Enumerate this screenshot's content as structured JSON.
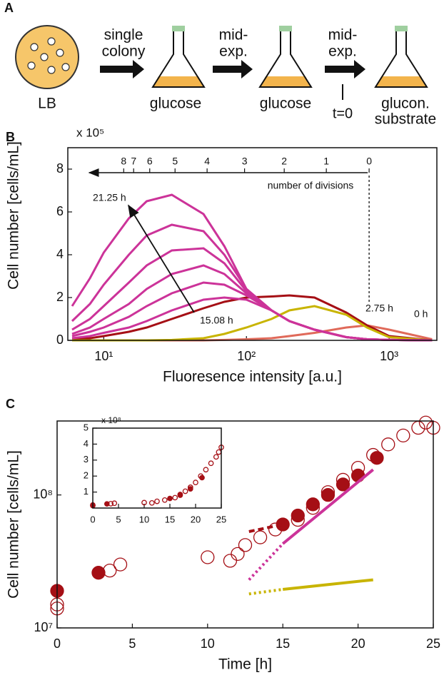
{
  "diagram": {
    "label": "A",
    "plate": "LB",
    "steps": [
      [
        "single",
        "colony"
      ],
      [
        "mid-",
        "exp."
      ],
      [
        "mid-",
        "exp."
      ]
    ],
    "media": [
      [
        "glucose"
      ],
      [
        "glucose"
      ],
      [
        "glucon.",
        "substrate"
      ]
    ],
    "time_mark": "t=0"
  },
  "chart_data": [
    {
      "type": "line",
      "panel": "B",
      "y_multiplier": "x 10⁵",
      "ylabel": "Cell number [cells/mL]",
      "xlabel": "Fluoresence intensity [a.u.]",
      "xlog": true,
      "xlim": [
        5.6,
        2160
      ],
      "ylim": [
        0,
        9
      ],
      "xticks": [
        {
          "value": 10,
          "label": "10¹"
        },
        {
          "value": 100,
          "label": "10²"
        },
        {
          "value": 1000,
          "label": "10³"
        }
      ],
      "yticks": [
        0,
        2,
        4,
        6,
        8
      ],
      "x2label": "number of divisions",
      "x2ticks": [
        {
          "value": 724,
          "label": "0"
        },
        {
          "value": 363,
          "label": "1"
        },
        {
          "value": 184,
          "label": "2"
        },
        {
          "value": 97,
          "label": "3"
        },
        {
          "value": 53,
          "label": "4"
        },
        {
          "value": 31.6,
          "label": "5"
        },
        {
          "value": 21,
          "label": "6"
        },
        {
          "value": 16.2,
          "label": "7"
        },
        {
          "value": 13.8,
          "label": "8"
        }
      ],
      "annotations": [
        "21.25 h",
        "15.08 h",
        "2.75 h",
        "0 h"
      ],
      "x": [
        6,
        8,
        10,
        15,
        20,
        30,
        50,
        70,
        100,
        150,
        200,
        300,
        500,
        700,
        1000,
        2000
      ],
      "series": [
        {
          "color": "#e06a5a",
          "values": [
            0,
            0,
            0,
            0,
            0,
            0,
            0,
            0.02,
            0.05,
            0.1,
            0.2,
            0.35,
            0.6,
            0.7,
            0.5,
            0.05
          ]
        },
        {
          "color": "#a50f15",
          "values": [
            0.05,
            0.1,
            0.2,
            0.4,
            0.6,
            1.0,
            1.5,
            1.8,
            2.0,
            2.05,
            2.1,
            2.0,
            1.3,
            0.7,
            0.2,
            0
          ]
        },
        {
          "color": "#c8b400",
          "values": [
            0,
            0,
            0,
            0,
            0,
            0.02,
            0.1,
            0.3,
            0.6,
            1.0,
            1.4,
            1.6,
            1.2,
            0.6,
            0.15,
            0
          ]
        },
        {
          "color": "#cc3399",
          "values": [
            0.1,
            0.2,
            0.35,
            0.6,
            0.9,
            1.4,
            1.9,
            2.0,
            1.9,
            1.4,
            0.9,
            0.5,
            0.15,
            0.05,
            0.02,
            0
          ]
        },
        {
          "color": "#cc3399",
          "values": [
            0.2,
            0.4,
            0.6,
            1.1,
            1.6,
            2.2,
            2.7,
            2.6,
            2.1,
            1.4,
            0.9,
            0.5,
            0.15,
            0.05,
            0.02,
            0
          ]
        },
        {
          "color": "#cc3399",
          "values": [
            0.3,
            0.6,
            1.0,
            1.7,
            2.4,
            3.1,
            3.5,
            3.1,
            2.2,
            1.4,
            0.9,
            0.5,
            0.15,
            0.05,
            0.02,
            0
          ]
        },
        {
          "color": "#cc3399",
          "values": [
            0.5,
            1.0,
            1.6,
            2.7,
            3.5,
            4.2,
            4.3,
            3.6,
            2.3,
            1.4,
            0.9,
            0.5,
            0.15,
            0.05,
            0.02,
            0
          ]
        },
        {
          "color": "#cc3399",
          "values": [
            0.9,
            1.7,
            2.6,
            4.0,
            4.9,
            5.4,
            5.1,
            4.0,
            2.4,
            1.4,
            0.9,
            0.5,
            0.15,
            0.05,
            0.02,
            0
          ]
        },
        {
          "color": "#cc3399",
          "values": [
            1.6,
            2.9,
            4.1,
            5.7,
            6.5,
            6.8,
            5.9,
            4.4,
            2.4,
            1.4,
            0.9,
            0.5,
            0.15,
            0.05,
            0.02,
            0
          ]
        }
      ]
    },
    {
      "type": "scatter",
      "panel": "C",
      "ylabel": "Cell number [cells/mL]",
      "xlabel": "Time [h]",
      "ylog": true,
      "xlim": [
        0,
        25
      ],
      "ylim": [
        10000000,
        360000000
      ],
      "xticks": [
        0,
        5,
        10,
        15,
        20,
        25
      ],
      "yticks": [
        {
          "value": 10000000,
          "label": "10⁷"
        },
        {
          "value": 100000000,
          "label": "10⁸"
        }
      ],
      "series": [
        {
          "color": "#a50f15",
          "marker": "open",
          "x": [
            0,
            0,
            3.5,
            4.2,
            10,
            11.5,
            12,
            12.5,
            13.5,
            14.5,
            16,
            17,
            18,
            19,
            20,
            21,
            22,
            23,
            24,
            24.5,
            25
          ],
          "values": [
            14000000,
            15000000,
            27000000,
            30000000,
            34000000,
            32000000,
            36000000,
            42000000,
            48000000,
            55000000,
            65000000,
            80000000,
            105000000,
            130000000,
            160000000,
            200000000,
            240000000,
            280000000,
            320000000,
            350000000,
            320000000
          ]
        },
        {
          "color": "#a50f15",
          "marker": "filled",
          "x": [
            0,
            2.75,
            15,
            16,
            17,
            18,
            19,
            20,
            21.25
          ],
          "values": [
            19000000,
            26000000,
            60000000,
            70000000,
            85000000,
            100000000,
            120000000,
            140000000,
            190000000
          ]
        },
        {
          "color": "#a50f15",
          "line": "dashed",
          "x": [
            12.75,
            15
          ],
          "values": [
            53000000,
            60000000
          ]
        },
        {
          "color": "#cc3399",
          "line": "dotted",
          "x": [
            12.75,
            15
          ],
          "values": [
            23000000,
            43000000
          ]
        },
        {
          "color": "#cc3399",
          "line": "solid",
          "x": [
            15,
            21
          ],
          "values": [
            43000000,
            155000000
          ]
        },
        {
          "color": "#c8b400",
          "line": "dotted",
          "x": [
            12.75,
            15
          ],
          "values": [
            18000000,
            19500000
          ]
        },
        {
          "color": "#c8b400",
          "line": "solid",
          "x": [
            15,
            21
          ],
          "values": [
            19500000,
            23000000
          ]
        }
      ]
    },
    {
      "type": "scatter",
      "panel": "inset",
      "y_multiplier": "x 10⁸",
      "xlim": [
        0,
        25
      ],
      "ylim": [
        0,
        5
      ],
      "xticks": [
        0,
        5,
        10,
        15,
        20,
        25
      ],
      "yticks": [
        1,
        2,
        3,
        4,
        5
      ],
      "series": [
        {
          "color": "#a50f15",
          "marker": "open",
          "x": [
            0,
            3.5,
            4.2,
            10,
            11.5,
            12.5,
            14,
            16,
            17,
            18,
            19,
            20,
            21,
            22,
            23,
            24,
            24.5,
            25
          ],
          "values": [
            0.15,
            0.27,
            0.3,
            0.34,
            0.32,
            0.42,
            0.5,
            0.65,
            0.8,
            1.05,
            1.3,
            1.6,
            2.0,
            2.4,
            2.8,
            3.2,
            3.5,
            3.8
          ]
        },
        {
          "color": "#a50f15",
          "marker": "filled",
          "x": [
            0,
            2.75,
            15,
            17,
            19,
            21.25
          ],
          "values": [
            0.19,
            0.26,
            0.6,
            0.85,
            1.2,
            1.9
          ]
        }
      ]
    }
  ]
}
